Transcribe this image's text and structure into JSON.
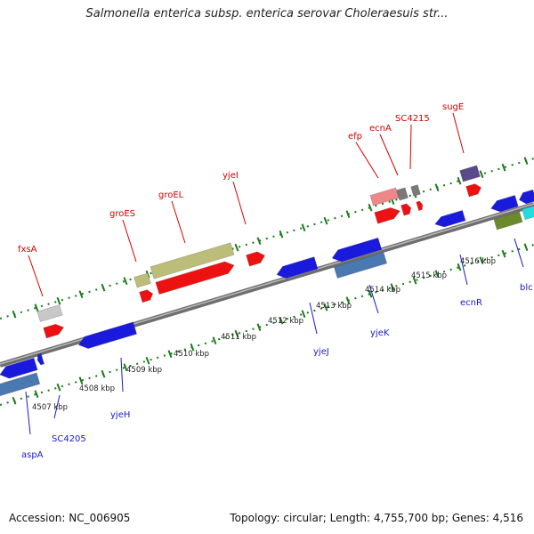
{
  "title": "Salmonella enterica subsp. enterica serovar Choleraesuis str...",
  "footer": {
    "accession": "Accession: NC_006905",
    "summary": "Topology: circular; Length: 4,755,700 bp; Genes: 4,516"
  },
  "colors": {
    "backbone": "#8a8a8a",
    "top_label": "#d40000",
    "bottom_label": "#1a1acc",
    "tick": "#1a7a1a"
  },
  "scale_ticks": [
    "4507 kbp",
    "4508 kbp",
    "4509 kbp",
    "4510 kbp",
    "4511 kbp",
    "4512 kbp",
    "4513 kbp",
    "4514 kbp",
    "4515 kbp",
    "4516 kbp"
  ],
  "top_labels": [
    "fxsA",
    "groES",
    "groEL",
    "yjeI",
    "efp",
    "ecnA",
    "SC4215",
    "sugE"
  ],
  "bottom_labels": [
    "aspA",
    "SC4205",
    "yjeH",
    "yjeJ",
    "yjeK",
    "ecnR",
    "blc"
  ]
}
